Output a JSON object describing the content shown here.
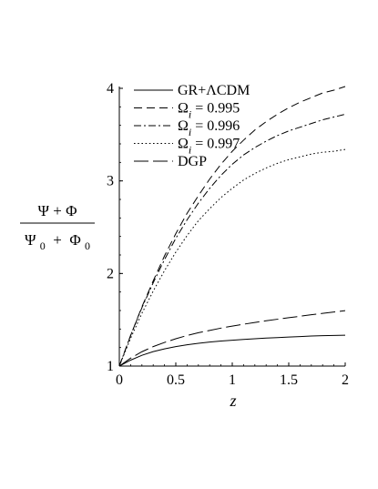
{
  "chart_data": {
    "type": "line",
    "xlabel": "z",
    "ylabel_numerator": "Ψ + Φ",
    "ylabel_denominator": {
      "psi": "Ψ",
      "psi_sub": "0",
      "op": " + ",
      "phi": "Φ",
      "phi_sub": "0"
    },
    "xlim": [
      0,
      2
    ],
    "ylim": [
      1,
      4
    ],
    "xticks": [
      {
        "value": 0,
        "label": "0"
      },
      {
        "value": 0.5,
        "label": "0.5"
      },
      {
        "value": 1,
        "label": "1"
      },
      {
        "value": 1.5,
        "label": "1.5"
      },
      {
        "value": 2,
        "label": "2"
      }
    ],
    "yticks": [
      {
        "value": 1,
        "label": "1"
      },
      {
        "value": 2,
        "label": "2"
      },
      {
        "value": 3,
        "label": "3"
      },
      {
        "value": 4,
        "label": "4"
      }
    ],
    "grid": false,
    "legend_position": "top-left",
    "x": [
      0,
      0.1,
      0.2,
      0.3,
      0.4,
      0.5,
      0.6,
      0.7,
      0.8,
      0.9,
      1.0,
      1.1,
      1.2,
      1.3,
      1.4,
      1.5,
      1.6,
      1.7,
      1.8,
      1.9,
      2.0
    ],
    "series": [
      {
        "name": "GR+ΛCDM",
        "legend_parts": [
          "GR+ΛCDM"
        ],
        "dash": "solid",
        "values": [
          1.0,
          1.064,
          1.116,
          1.156,
          1.186,
          1.21,
          1.23,
          1.246,
          1.259,
          1.27,
          1.279,
          1.288,
          1.295,
          1.302,
          1.308,
          1.314,
          1.319,
          1.324,
          1.328,
          1.331,
          1.333
        ]
      },
      {
        "name": "Ωi = 0.995",
        "legend_parts": [
          "Ω",
          "i",
          " = 0.995"
        ],
        "dash": "dash",
        "values": [
          1.0,
          1.33,
          1.64,
          1.92,
          2.19,
          2.43,
          2.65,
          2.84,
          3.02,
          3.18,
          3.32,
          3.44,
          3.55,
          3.64,
          3.72,
          3.79,
          3.85,
          3.9,
          3.95,
          3.98,
          4.02
        ]
      },
      {
        "name": "Ωi = 0.996",
        "legend_parts": [
          "Ω",
          "i",
          " = 0.996"
        ],
        "dash": "dashdot",
        "values": [
          1.0,
          1.33,
          1.63,
          1.9,
          2.15,
          2.38,
          2.58,
          2.76,
          2.92,
          3.06,
          3.18,
          3.28,
          3.36,
          3.43,
          3.49,
          3.54,
          3.58,
          3.62,
          3.66,
          3.69,
          3.72
        ]
      },
      {
        "name": "Ωi = 0.997",
        "legend_parts": [
          "Ω",
          "i",
          " = 0.997"
        ],
        "dash": "dot",
        "values": [
          1.0,
          1.3,
          1.57,
          1.81,
          2.03,
          2.23,
          2.41,
          2.57,
          2.7,
          2.82,
          2.92,
          3.01,
          3.08,
          3.14,
          3.19,
          3.23,
          3.26,
          3.29,
          3.31,
          3.32,
          3.34
        ]
      },
      {
        "name": "DGP",
        "legend_parts": [
          "DGP"
        ],
        "dash": "longdash",
        "values": [
          1.0,
          1.085,
          1.155,
          1.21,
          1.255,
          1.295,
          1.33,
          1.36,
          1.385,
          1.41,
          1.432,
          1.452,
          1.471,
          1.489,
          1.506,
          1.522,
          1.538,
          1.554,
          1.569,
          1.584,
          1.599
        ]
      }
    ]
  }
}
